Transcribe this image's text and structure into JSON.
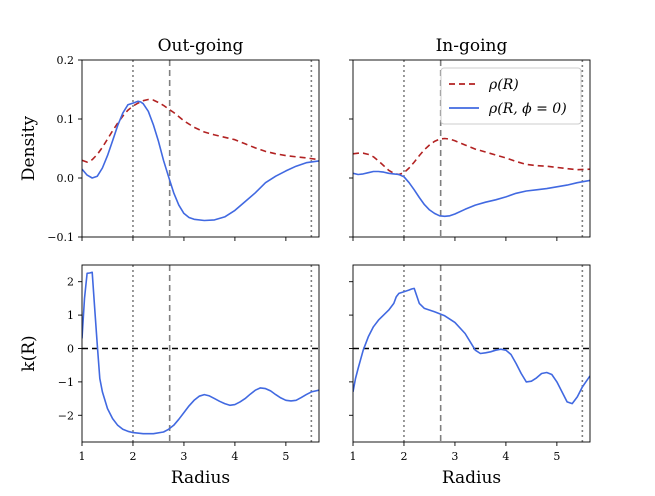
{
  "chart_data": [
    {
      "type": "line",
      "panel": "top-left",
      "title": "Out-going",
      "xlabel": "",
      "ylabel": "Density",
      "xlim": [
        1.0,
        5.65
      ],
      "ylim": [
        -0.1,
        0.2
      ],
      "yticks": [
        -0.1,
        0.0,
        0.1,
        0.2
      ],
      "ytick_labels": [
        "−0.1",
        "0.0",
        "0.1",
        "0.2"
      ],
      "vlines": [
        {
          "x": 2.0,
          "style": "dotted"
        },
        {
          "x": 2.72,
          "style": "dashed"
        },
        {
          "x": 5.5,
          "style": "dotted"
        }
      ],
      "series": [
        {
          "color": "#b22222",
          "dash": "dashed",
          "x": [
            1.0,
            1.1,
            1.2,
            1.3,
            1.4,
            1.5,
            1.6,
            1.7,
            1.8,
            1.9,
            2.0,
            2.1,
            2.2,
            2.3,
            2.4,
            2.5,
            2.6,
            2.7,
            2.8,
            2.9,
            3.0,
            3.2,
            3.4,
            3.6,
            3.8,
            4.0,
            4.2,
            4.4,
            4.6,
            4.8,
            5.0,
            5.2,
            5.4,
            5.65
          ],
          "values": [
            0.03,
            0.027,
            0.031,
            0.04,
            0.052,
            0.066,
            0.08,
            0.093,
            0.105,
            0.115,
            0.122,
            0.127,
            0.131,
            0.133,
            0.132,
            0.128,
            0.123,
            0.117,
            0.111,
            0.104,
            0.097,
            0.086,
            0.078,
            0.073,
            0.069,
            0.065,
            0.058,
            0.051,
            0.045,
            0.041,
            0.038,
            0.036,
            0.034,
            0.031
          ]
        },
        {
          "color": "#4169e1",
          "dash": "solid",
          "x": [
            1.0,
            1.1,
            1.2,
            1.3,
            1.4,
            1.5,
            1.6,
            1.7,
            1.8,
            1.9,
            2.0,
            2.1,
            2.15,
            2.2,
            2.3,
            2.4,
            2.5,
            2.6,
            2.7,
            2.8,
            2.9,
            3.0,
            3.1,
            3.2,
            3.4,
            3.6,
            3.8,
            4.0,
            4.2,
            4.4,
            4.6,
            4.8,
            5.0,
            5.2,
            5.4,
            5.65
          ],
          "values": [
            0.015,
            0.005,
            0.0,
            0.003,
            0.017,
            0.038,
            0.063,
            0.089,
            0.11,
            0.124,
            0.127,
            0.13,
            0.129,
            0.126,
            0.113,
            0.09,
            0.062,
            0.03,
            0.002,
            -0.025,
            -0.046,
            -0.06,
            -0.067,
            -0.07,
            -0.072,
            -0.071,
            -0.066,
            -0.055,
            -0.04,
            -0.025,
            -0.008,
            0.003,
            0.012,
            0.02,
            0.026,
            0.029
          ]
        }
      ]
    },
    {
      "type": "line",
      "panel": "top-right",
      "title": "In-going",
      "xlabel": "",
      "ylabel": "",
      "xlim": [
        1.0,
        5.65
      ],
      "ylim": [
        -0.1,
        0.2
      ],
      "legend": {
        "placement": "top-right",
        "entries": [
          "ρ(R)",
          "ρ(R, ϕ = 0)"
        ]
      },
      "vlines": [
        {
          "x": 2.0,
          "style": "dotted"
        },
        {
          "x": 2.72,
          "style": "dashed"
        },
        {
          "x": 5.5,
          "style": "dotted"
        }
      ],
      "series": [
        {
          "color": "#b22222",
          "dash": "dashed",
          "x": [
            1.0,
            1.1,
            1.2,
            1.3,
            1.4,
            1.5,
            1.6,
            1.7,
            1.8,
            1.9,
            2.0,
            2.1,
            2.2,
            2.3,
            2.4,
            2.5,
            2.6,
            2.7,
            2.8,
            2.9,
            3.0,
            3.2,
            3.4,
            3.6,
            3.8,
            4.0,
            4.2,
            4.4,
            4.6,
            4.8,
            5.0,
            5.2,
            5.4,
            5.65
          ],
          "values": [
            0.041,
            0.042,
            0.042,
            0.04,
            0.036,
            0.029,
            0.021,
            0.013,
            0.008,
            0.006,
            0.009,
            0.017,
            0.027,
            0.038,
            0.048,
            0.056,
            0.062,
            0.066,
            0.067,
            0.066,
            0.063,
            0.056,
            0.049,
            0.044,
            0.039,
            0.034,
            0.028,
            0.023,
            0.021,
            0.02,
            0.018,
            0.016,
            0.014,
            0.015
          ]
        },
        {
          "color": "#4169e1",
          "dash": "solid",
          "x": [
            1.0,
            1.1,
            1.2,
            1.3,
            1.4,
            1.5,
            1.6,
            1.7,
            1.8,
            1.9,
            2.0,
            2.1,
            2.2,
            2.3,
            2.4,
            2.5,
            2.6,
            2.7,
            2.8,
            2.9,
            3.0,
            3.2,
            3.4,
            3.6,
            3.8,
            4.0,
            4.2,
            4.4,
            4.6,
            4.8,
            5.0,
            5.2,
            5.4,
            5.65
          ],
          "values": [
            0.008,
            0.006,
            0.007,
            0.009,
            0.011,
            0.011,
            0.01,
            0.008,
            0.007,
            0.006,
            0.002,
            -0.008,
            -0.02,
            -0.033,
            -0.045,
            -0.054,
            -0.06,
            -0.064,
            -0.065,
            -0.064,
            -0.061,
            -0.053,
            -0.046,
            -0.041,
            -0.037,
            -0.032,
            -0.026,
            -0.022,
            -0.02,
            -0.018,
            -0.015,
            -0.012,
            -0.008,
            -0.004
          ]
        }
      ]
    },
    {
      "type": "line",
      "panel": "bottom-left",
      "title": "",
      "xlabel": "Radius",
      "ylabel": "k(R)",
      "xlim": [
        1.0,
        5.65
      ],
      "ylim": [
        -2.8,
        2.5
      ],
      "xticks": [
        1,
        2,
        3,
        4,
        5
      ],
      "yticks": [
        -2,
        -1,
        0,
        1,
        2
      ],
      "ytick_labels": [
        "−2",
        "−1",
        "0",
        "1",
        "2"
      ],
      "hlines": [
        {
          "y": 0,
          "style": "dashed"
        }
      ],
      "vlines": [
        {
          "x": 2.0,
          "style": "dotted"
        },
        {
          "x": 2.72,
          "style": "dashed"
        },
        {
          "x": 5.5,
          "style": "dotted"
        }
      ],
      "series": [
        {
          "color": "#4169e1",
          "dash": "solid",
          "x": [
            1.0,
            1.05,
            1.1,
            1.15,
            1.2,
            1.25,
            1.3,
            1.35,
            1.4,
            1.5,
            1.6,
            1.7,
            1.8,
            1.9,
            2.0,
            2.2,
            2.4,
            2.6,
            2.7,
            2.8,
            2.9,
            3.0,
            3.1,
            3.2,
            3.3,
            3.4,
            3.5,
            3.6,
            3.7,
            3.8,
            3.9,
            4.0,
            4.1,
            4.2,
            4.3,
            4.4,
            4.5,
            4.6,
            4.7,
            4.8,
            4.9,
            5.0,
            5.1,
            5.2,
            5.3,
            5.4,
            5.5,
            5.65
          ],
          "values": [
            0.3,
            1.5,
            2.25,
            2.26,
            2.28,
            1.2,
            0.1,
            -0.9,
            -1.3,
            -1.8,
            -2.1,
            -2.3,
            -2.42,
            -2.48,
            -2.52,
            -2.55,
            -2.55,
            -2.5,
            -2.42,
            -2.3,
            -2.12,
            -1.92,
            -1.72,
            -1.55,
            -1.43,
            -1.38,
            -1.42,
            -1.5,
            -1.58,
            -1.65,
            -1.7,
            -1.68,
            -1.6,
            -1.5,
            -1.37,
            -1.25,
            -1.18,
            -1.2,
            -1.27,
            -1.38,
            -1.48,
            -1.55,
            -1.57,
            -1.55,
            -1.47,
            -1.38,
            -1.3,
            -1.25
          ]
        }
      ]
    },
    {
      "type": "line",
      "panel": "bottom-right",
      "title": "",
      "xlabel": "Radius",
      "ylabel": "",
      "xlim": [
        1.0,
        5.65
      ],
      "ylim": [
        -2.8,
        2.5
      ],
      "xticks": [
        1,
        2,
        3,
        4,
        5
      ],
      "hlines": [
        {
          "y": 0,
          "style": "dashed"
        }
      ],
      "vlines": [
        {
          "x": 2.0,
          "style": "dotted"
        },
        {
          "x": 2.72,
          "style": "dashed"
        },
        {
          "x": 5.5,
          "style": "dotted"
        }
      ],
      "series": [
        {
          "color": "#4169e1",
          "dash": "solid",
          "x": [
            1.0,
            1.05,
            1.1,
            1.2,
            1.3,
            1.4,
            1.5,
            1.6,
            1.7,
            1.8,
            1.85,
            1.9,
            2.0,
            2.1,
            2.15,
            2.2,
            2.3,
            2.4,
            2.6,
            2.8,
            3.0,
            3.2,
            3.3,
            3.4,
            3.5,
            3.6,
            3.7,
            3.8,
            3.9,
            4.0,
            4.1,
            4.2,
            4.3,
            4.4,
            4.5,
            4.6,
            4.7,
            4.8,
            4.9,
            5.0,
            5.1,
            5.2,
            5.3,
            5.4,
            5.5,
            5.65
          ],
          "values": [
            -1.3,
            -0.9,
            -0.6,
            -0.05,
            0.35,
            0.65,
            0.85,
            1.0,
            1.15,
            1.35,
            1.55,
            1.65,
            1.7,
            1.75,
            1.78,
            1.8,
            1.35,
            1.2,
            1.1,
            0.98,
            0.78,
            0.45,
            0.2,
            -0.05,
            -0.15,
            -0.13,
            -0.1,
            -0.05,
            -0.02,
            -0.05,
            -0.18,
            -0.45,
            -0.75,
            -1.0,
            -0.98,
            -0.88,
            -0.75,
            -0.72,
            -0.78,
            -1.0,
            -1.3,
            -1.6,
            -1.65,
            -1.45,
            -1.15,
            -0.82
          ]
        }
      ]
    }
  ]
}
